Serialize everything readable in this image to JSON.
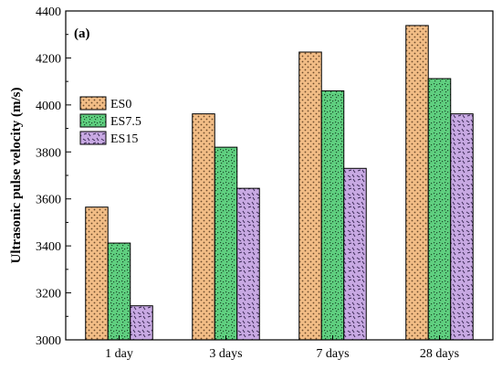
{
  "chart_data": {
    "type": "bar",
    "panel_label": "(a)",
    "categories": [
      "1 day",
      "3 days",
      "7 days",
      "28 days"
    ],
    "series": [
      {
        "name": "ES0",
        "values": [
          3565,
          3962,
          4225,
          4338
        ],
        "color": "#f2bd86",
        "pattern": "dots"
      },
      {
        "name": "ES7.5",
        "values": [
          3412,
          3820,
          4060,
          4112
        ],
        "color": "#5fcf7f",
        "pattern": "speckle"
      },
      {
        "name": "ES15",
        "values": [
          3145,
          3645,
          3730,
          3962
        ],
        "color": "#c8a9e3",
        "pattern": "dashes"
      }
    ],
    "xlabel": "",
    "ylabel": "Ultrasonic pulse velocity (m/s)",
    "ylim": [
      3000,
      4400
    ],
    "yticks": [
      3000,
      3200,
      3400,
      3600,
      3800,
      4000,
      4200,
      4400
    ],
    "grid": false,
    "legend_position": "left"
  }
}
